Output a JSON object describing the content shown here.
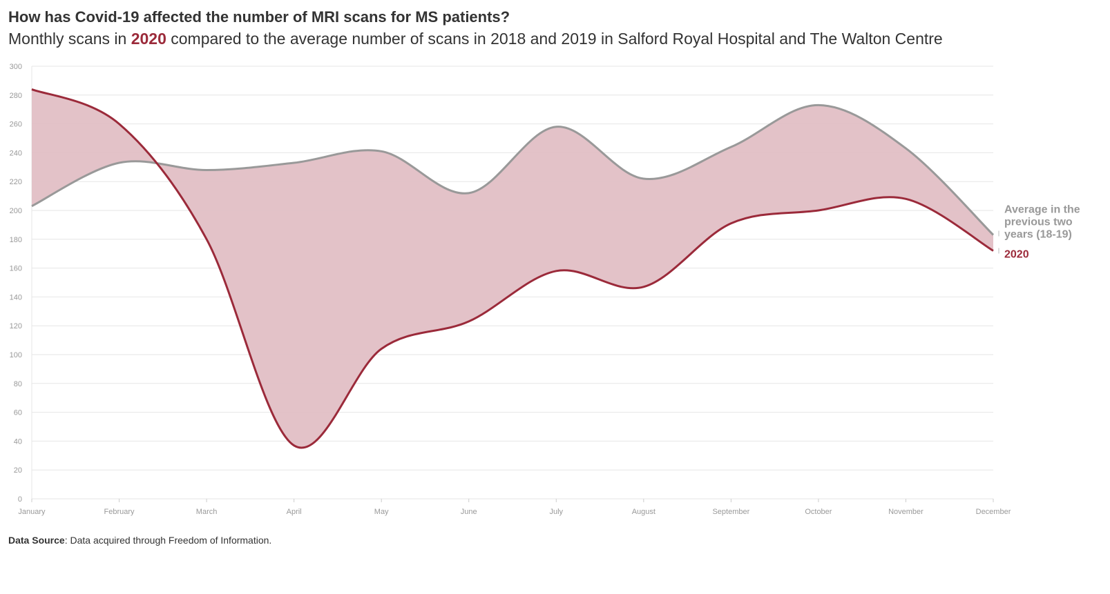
{
  "header": {
    "title": "How has Covid-19 affected the number of MRI scans for MS patients?",
    "subtitle_pre": "Monthly scans in ",
    "subtitle_highlight": "2020",
    "subtitle_post": " compared to the average number of scans in 2018 and 2019 in Salford Royal Hospital and The Walton Centre"
  },
  "footer": {
    "source_label": "Data Source",
    "source_text": ": Data acquired through Freedom of Information."
  },
  "colors": {
    "series_2020": "#9b2a3a",
    "series_avg": "#999999",
    "fill": "#e2bfc5",
    "grid": "#e6e6e6"
  },
  "chart_data": {
    "type": "line",
    "title": "How has Covid-19 affected the number of MRI scans for MS patients?",
    "subtitle": "Monthly scans in 2020 compared to the average number of scans in 2018 and 2019 in Salford Royal Hospital and The Walton Centre",
    "categories": [
      "January",
      "February",
      "March",
      "April",
      "May",
      "June",
      "July",
      "August",
      "September",
      "October",
      "November",
      "December"
    ],
    "yticks": [
      0,
      20,
      40,
      60,
      80,
      100,
      120,
      140,
      160,
      180,
      200,
      220,
      240,
      260,
      280,
      300
    ],
    "ylim": [
      0,
      300
    ],
    "grid": true,
    "area_between_series": true,
    "series": [
      {
        "name": "Average in the previous two years (18-19)",
        "label_lines": [
          "Average in the",
          "previous two",
          "years (18-19)"
        ],
        "values": [
          203,
          233,
          228,
          233,
          241,
          212,
          258,
          222,
          244,
          273,
          243,
          183
        ]
      },
      {
        "name": "2020",
        "label_lines": [
          "2020"
        ],
        "values": [
          284,
          260,
          180,
          37,
          104,
          123,
          158,
          147,
          191,
          200,
          208,
          172
        ]
      }
    ]
  }
}
